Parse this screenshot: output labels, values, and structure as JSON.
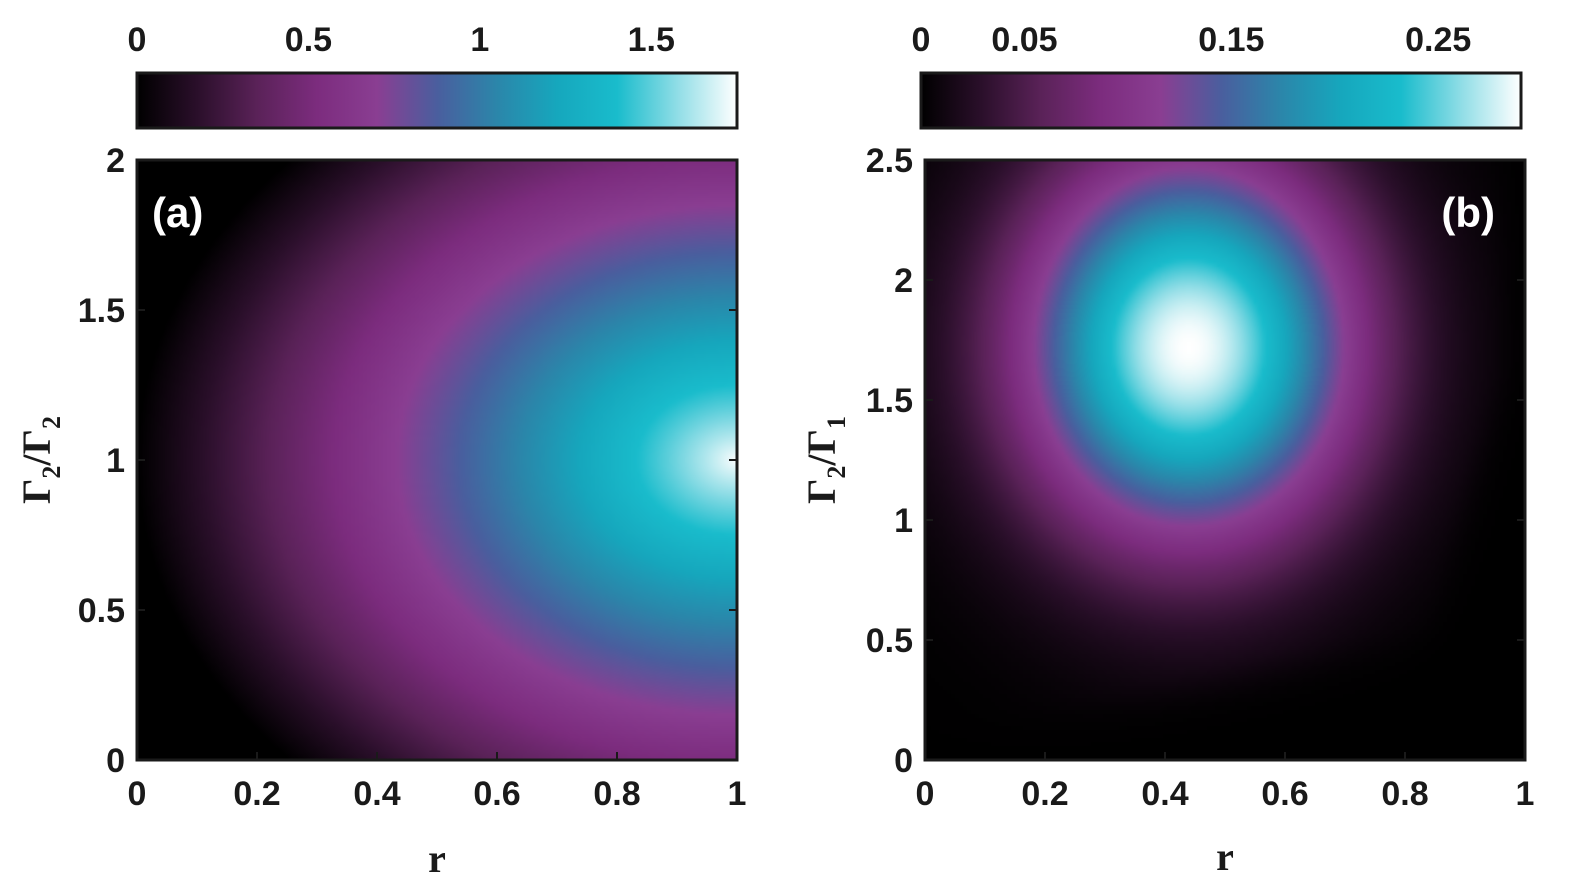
{
  "chart_data": [
    {
      "type": "heatmap",
      "panel_label": "(a)",
      "xlabel": "r",
      "ylabel": "Γ2/Γ2",
      "ylabel_main": "Γ",
      "ylabel_sub_num": "2",
      "ylabel_sub_den": "2",
      "xlim": [
        0,
        1
      ],
      "ylim": [
        0,
        2
      ],
      "xticks": [
        0,
        0.2,
        0.4,
        0.6,
        0.8,
        1
      ],
      "xtick_labels": [
        "0",
        "0.2",
        "0.4",
        "0.6",
        "0.8",
        "1"
      ],
      "yticks": [
        0,
        0.5,
        1,
        1.5,
        2
      ],
      "ytick_labels": [
        "0",
        "0.5",
        "1",
        "1.5",
        "2"
      ],
      "colorbar": {
        "range": [
          0,
          1.75
        ],
        "ticks": [
          0,
          0.5,
          1,
          1.5
        ],
        "tick_labels": [
          "0",
          "0.5",
          "1",
          "1.5"
        ]
      },
      "peak": {
        "x": 1.0,
        "y": 1.0,
        "value": 1.75
      }
    },
    {
      "type": "heatmap",
      "panel_label": "(b)",
      "xlabel": "r",
      "ylabel": "Γ2/Γ1",
      "ylabel_main": "Γ",
      "ylabel_sub_num": "2",
      "ylabel_sub_den": "1",
      "xlim": [
        0,
        1
      ],
      "ylim": [
        0,
        2.5
      ],
      "xticks": [
        0,
        0.2,
        0.4,
        0.6,
        0.8,
        1
      ],
      "xtick_labels": [
        "0",
        "0.2",
        "0.4",
        "0.6",
        "0.8",
        "1"
      ],
      "yticks": [
        0,
        0.5,
        1,
        1.5,
        2,
        2.5
      ],
      "ytick_labels": [
        "0",
        "0.5",
        "1",
        "1.5",
        "2",
        "2.5"
      ],
      "colorbar": {
        "range": [
          0,
          0.29
        ],
        "ticks": [
          0,
          0.05,
          0.15,
          0.25
        ],
        "tick_labels": [
          "0",
          "0.05",
          "0.15",
          "0.25"
        ]
      },
      "peak": {
        "x": 0.44,
        "y": 1.72,
        "value": 0.29
      }
    }
  ],
  "colormap": [
    "#000000",
    "#2a0f2a",
    "#5a2258",
    "#7c2c7e",
    "#8a3e92",
    "#4a5e9e",
    "#2b86aa",
    "#16a7bd",
    "#19bccc",
    "#8fdde6",
    "#ffffff"
  ]
}
